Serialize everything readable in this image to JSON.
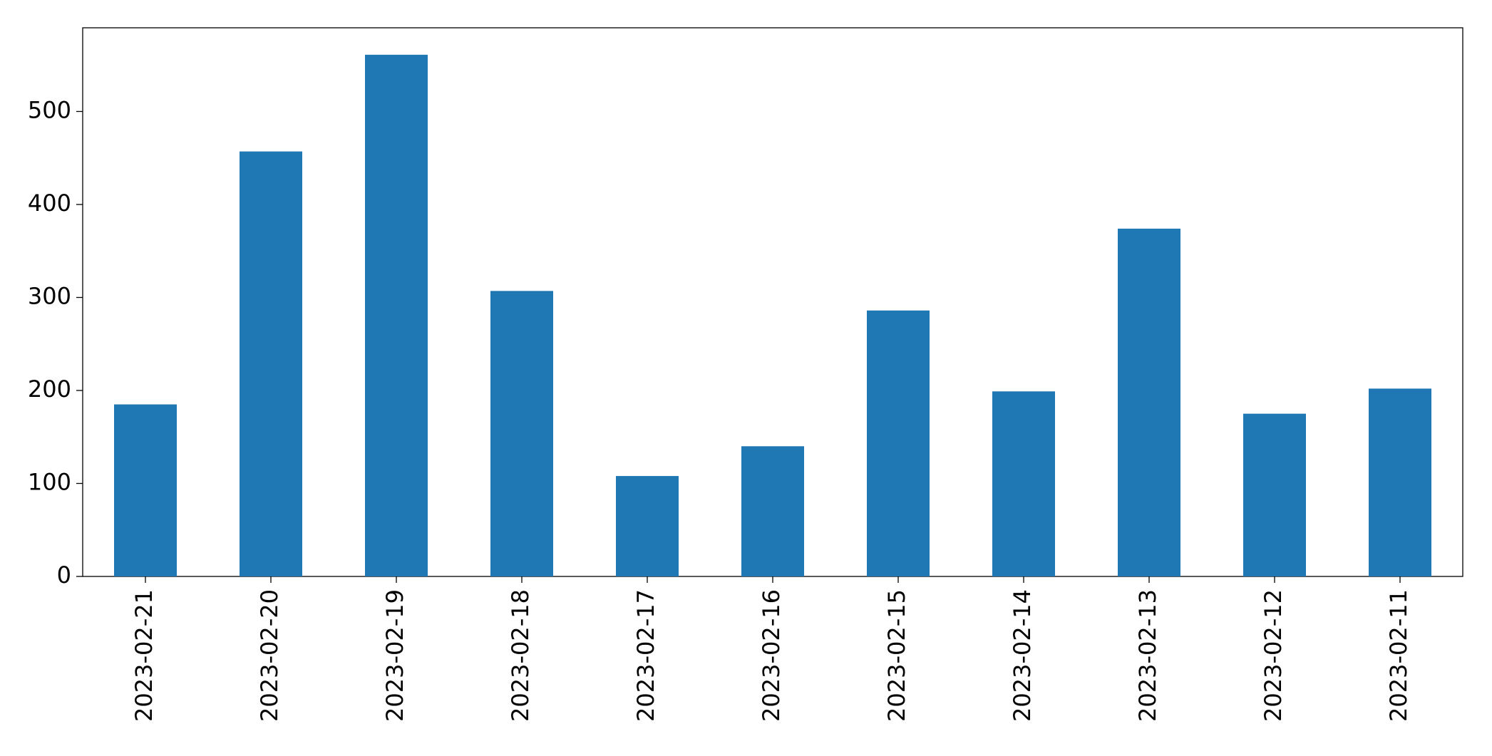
{
  "chart_data": {
    "type": "bar",
    "categories": [
      "2023-02-21",
      "2023-02-20",
      "2023-02-19",
      "2023-02-18",
      "2023-02-17",
      "2023-02-16",
      "2023-02-15",
      "2023-02-14",
      "2023-02-13",
      "2023-02-12",
      "2023-02-11"
    ],
    "values": [
      185,
      457,
      561,
      307,
      108,
      140,
      286,
      199,
      374,
      175,
      202
    ],
    "color": "#1f77b4",
    "ylim": [
      0,
      590
    ],
    "yticks": [
      0,
      100,
      200,
      300,
      400,
      500
    ],
    "grid": false
  }
}
